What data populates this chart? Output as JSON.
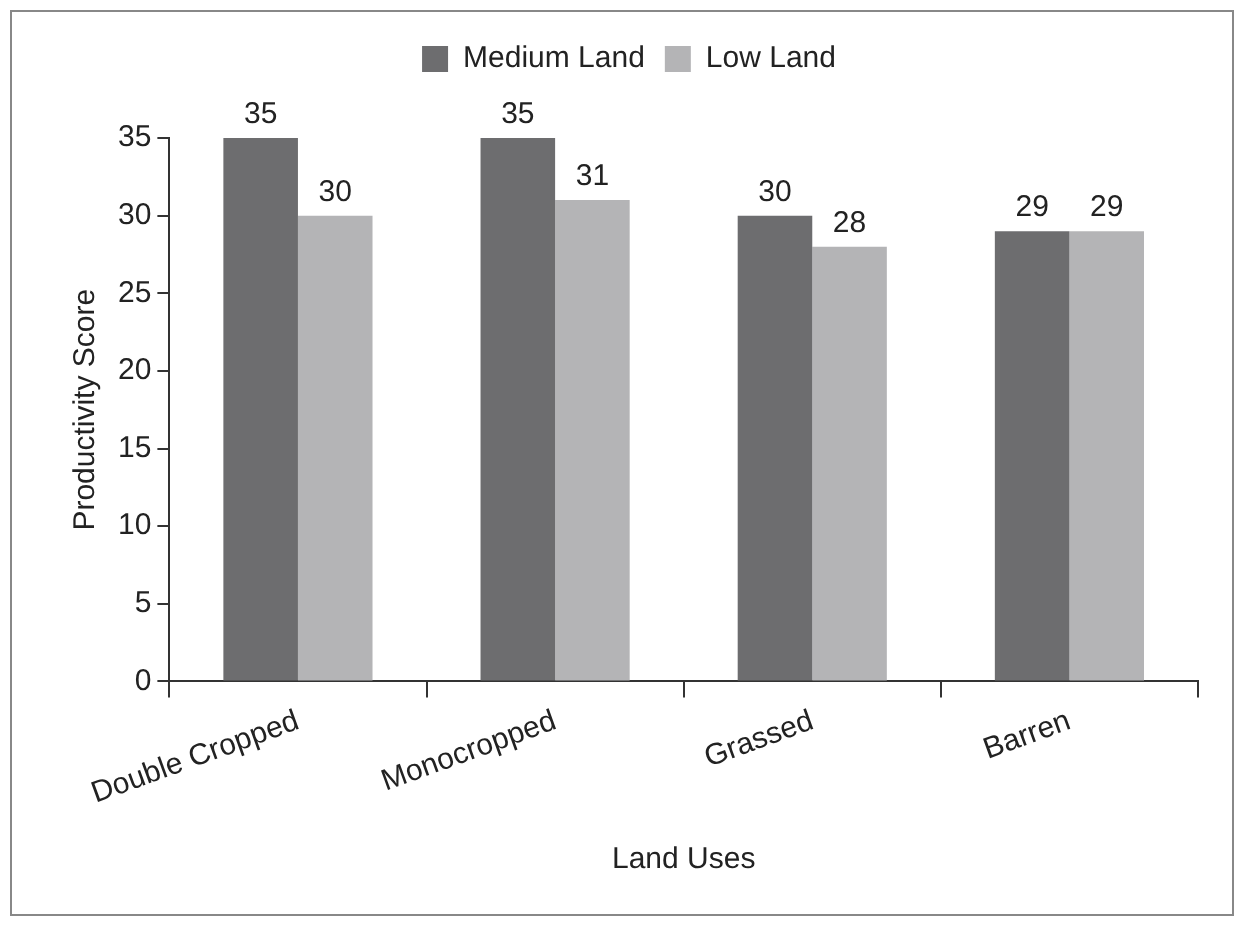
{
  "chart_data": {
    "type": "bar",
    "xlabel": "Land Uses",
    "ylabel": "Productivity Score",
    "categories": [
      "Double Cropped",
      "Monocropped",
      "Grassed",
      "Barren"
    ],
    "series": [
      {
        "name": "Medium Land",
        "color": "#6d6d6f",
        "values": [
          35,
          35,
          30,
          29
        ]
      },
      {
        "name": "Low Land",
        "color": "#b4b4b6",
        "values": [
          30,
          31,
          28,
          29
        ]
      }
    ],
    "ylim": [
      0,
      35
    ],
    "yticks": [
      0,
      5,
      10,
      15,
      20,
      25,
      30,
      35
    ],
    "grid": false,
    "legend": "top",
    "data_labels": true
  }
}
